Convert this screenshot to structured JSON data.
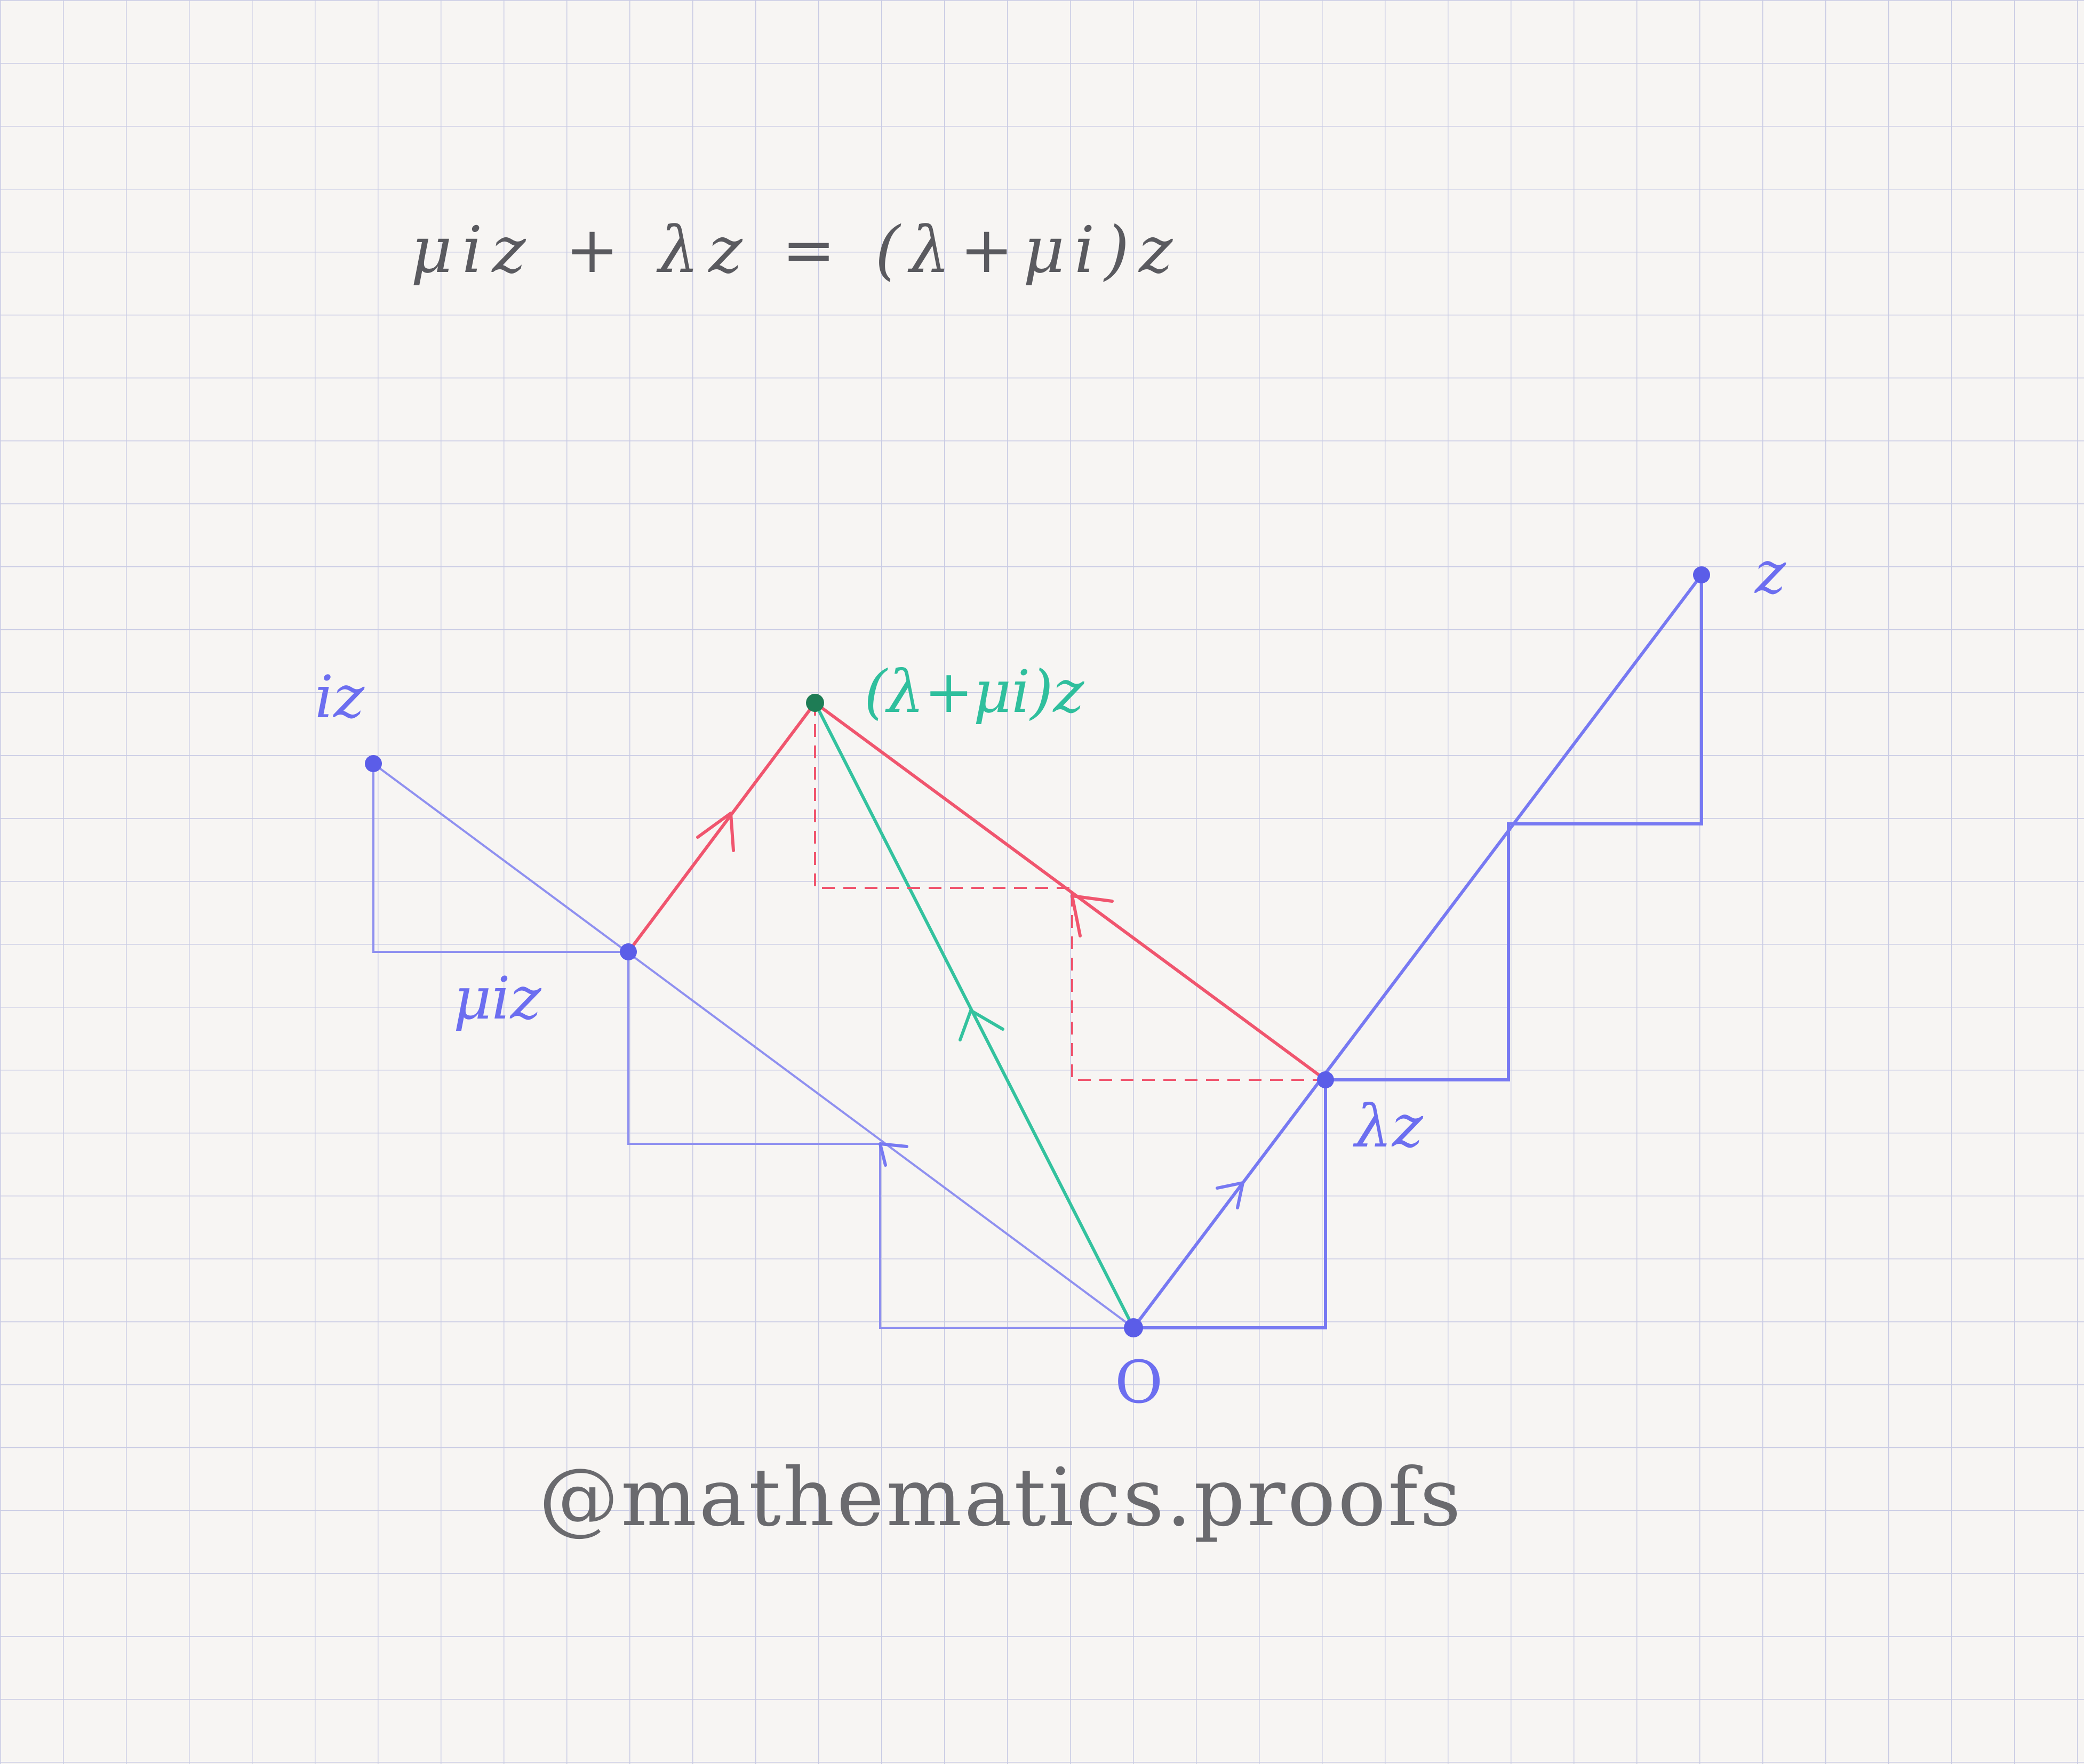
{
  "equation": "μiz + λz = (λ+μi)z",
  "labels": {
    "z": "z",
    "iz": "iz",
    "miz": "μiz",
    "lz": "λz",
    "sum": "(λ+μi)z",
    "origin": "O"
  },
  "signature": "@mathematics.proofs",
  "colors": {
    "paper": "#f7f5f3",
    "grid": "#c9cbe4",
    "blue": "#7779f2",
    "red": "#f0556e",
    "green": "#33c29e",
    "ink": "#5a5a5f"
  }
}
